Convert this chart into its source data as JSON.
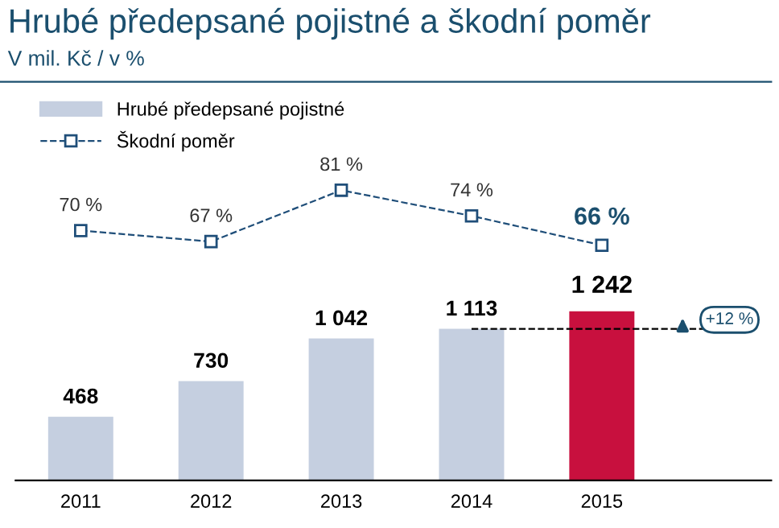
{
  "chart_data": [
    {
      "type": "line",
      "title": "Hrubé předepsané pojistné a škodní poměr",
      "subtitle": "V mil. Kč / v %",
      "categories": [
        "2011",
        "2012",
        "2013",
        "2014",
        "2015"
      ],
      "tick_labels": false,
      "series": [
        {
          "name": "Škodní poměr",
          "color": "#1f4e79",
          "values": [
            70,
            67,
            81,
            74,
            66
          ],
          "value_labels": [
            "70 %",
            "67 %",
            "81 %",
            "74 %",
            "66 %"
          ]
        }
      ],
      "marker": "square",
      "line_style": "dashed",
      "legend": "top left",
      "grid": false
    },
    {
      "type": "bar",
      "categories": [
        "2011",
        "2012",
        "2013",
        "2014",
        "2015"
      ],
      "tick_labels": "x",
      "series": [
        {
          "name": "Hrubé předepsané pojistné",
          "colors": [
            "#c5cfe0",
            "#c5cfe0",
            "#c5cfe0",
            "#c5cfe0",
            "#c8103e"
          ],
          "values": [
            468,
            730,
            1042,
            1113,
            1242
          ],
          "value_labels": [
            "468",
            "730",
            "1 042",
            "1 113",
            "1 242"
          ]
        }
      ],
      "ref_lines": [
        {
          "axis": "y",
          "value": 1113,
          "line_style": "dashed",
          "color": "#000000"
        }
      ],
      "annotations": [
        "+12 %"
      ],
      "legend": "top left",
      "grid": false
    }
  ]
}
